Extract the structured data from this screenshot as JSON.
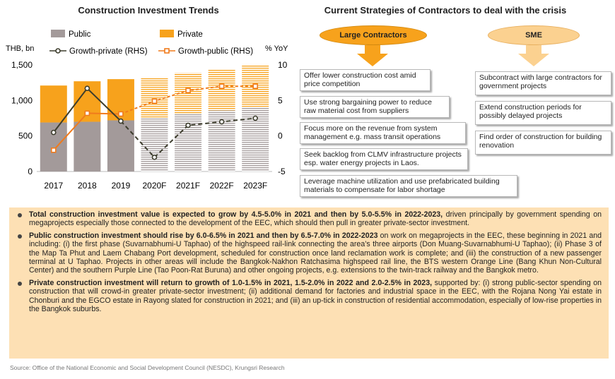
{
  "chart_title": "Construction Investment Trends",
  "strategies_title": "Current Strategies of Contractors to deal with the crisis",
  "chart_data": {
    "type": "bar",
    "title": "Construction Investment Trends",
    "categories": [
      "2017",
      "2018",
      "2019",
      "2020F",
      "2021F",
      "2022F",
      "2023F"
    ],
    "forecast_from_index": 3,
    "left_axis_label": "THB, bn",
    "right_axis_label": "% YoY",
    "left_ylim": [
      0,
      1500
    ],
    "left_ticks": [
      "0",
      "500",
      "1,000",
      "1,500"
    ],
    "right_ylim": [
      -5,
      10
    ],
    "right_ticks": [
      "-5",
      "0",
      "5",
      "10"
    ],
    "series": [
      {
        "name": "Public",
        "type": "stacked-bar",
        "axis": "left",
        "color": "#a39a9a",
        "values": [
          690,
          700,
          720,
          760,
          810,
          860,
          910
        ]
      },
      {
        "name": "Private",
        "type": "stacked-bar",
        "axis": "left",
        "color": "#f7a21c",
        "values": [
          520,
          570,
          580,
          565,
          580,
          585,
          590
        ]
      },
      {
        "name": "Growth-private (RHS)",
        "type": "line",
        "axis": "right",
        "color": "#3d3d2d",
        "values": [
          0.5,
          6.7,
          2.1,
          -3.0,
          1.5,
          2.0,
          2.5
        ]
      },
      {
        "name": "Growth-public (RHS)",
        "type": "line",
        "axis": "right",
        "color": "#f07b1c",
        "values": [
          -2.0,
          3.2,
          3.1,
          4.9,
          6.4,
          7.0,
          7.0
        ]
      }
    ],
    "legend_position": "top"
  },
  "large_contractors": {
    "label": "Large Contractors",
    "items": [
      "Offer lower construction cost amid price competition",
      "Use strong bargaining power to reduce raw material cost from suppliers",
      "Focus more on the revenue from system management e.g. mass transit operations",
      "Seek backlog from CLMV infrastructure projects esp. water energy projects in Laos.",
      "Leverage machine utilization and use prefabricated building materials to compensate for labor shortage"
    ]
  },
  "sme": {
    "label": "SME",
    "items": [
      "Subcontract with large contractors for government projects",
      "Extend construction periods for possibly delayed projects",
      "Find order of construction for building renovation"
    ]
  },
  "bullets": [
    {
      "bold": "Total construction investment value is expected to grow by 4.5-5.0% in 2021 and then by 5.0-5.5% in 2022-2023,",
      "text": " driven principally by government spending on megaprojects especially those connected to the development of the EEC, which should then pull in greater private-sector investment."
    },
    {
      "bold": "Public construction investment should rise by 6.0-6.5% in 2021 and then by 6.5-7.0% in 2022-2023",
      "text": " on work on megaprojects in the EEC, these beginning in 2021 and including: (i) the first phase (Suvarnabhumi-U Taphao) of the highspeed rail-link connecting the area’s three airports (Don Muang-Suvarnabhumi-U Taphao); (ii) Phase 3 of the Map Ta Phut and Laem Chabang Port development, scheduled for construction once land reclamation work is complete; and (iii) the construction of a new passenger terminal at U Taphao. Projects in other areas will include the Bangkok-Nakhon Ratchasima highspeed rail line, the BTS western Orange Line (Bang Khun Non-Cultural Center) and the southern Purple Line (Tao Poon-Rat Buruna) and other ongoing projects, e.g. extensions to the twin-track railway and the Bangkok metro."
    },
    {
      "bold": "Private construction investment will return to growth of 1.0-1.5% in 2021, 1.5-2.0% in 2022 and 2.0-2.5% in 2023,",
      "text": " supported by: (i) strong public-sector spending on construction that will crowd-in greater private-sector investment; (ii) additional demand for factories and industrial space in the EEC, with the Rojana Nong Yai estate in Chonburi and the EGCO estate in Rayong slated for construction in 2021; and (iii) an up-tick in construction of residential accommodation, especially of low-rise properties in the Bangkok suburbs."
    }
  ],
  "source": "Source: Office of the National Economic and Social Development Council (NESDC), Krungsri Research"
}
